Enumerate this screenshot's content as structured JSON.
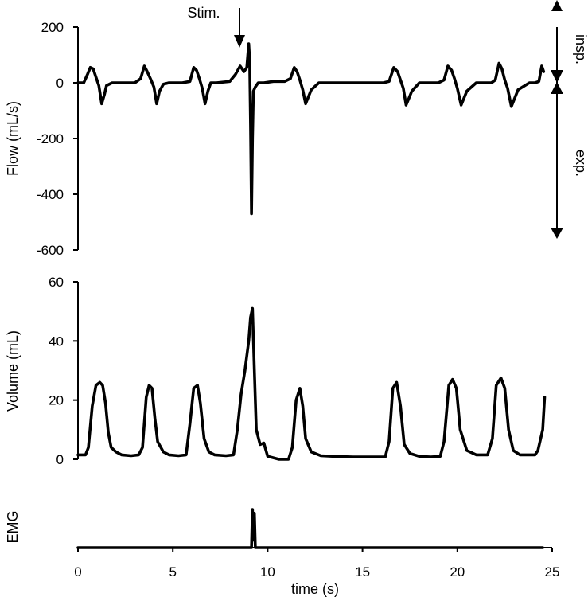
{
  "chart_data": [
    {
      "type": "line",
      "ylabel": "Flow (mL/s)",
      "xlim": [
        0,
        25
      ],
      "ylim": [
        -600,
        200
      ],
      "yticks": [
        "200",
        "0",
        "-200",
        "-400",
        "-600"
      ],
      "annotations": {
        "stimulus": "Stim.",
        "inspiration": "insp.",
        "expiration": "exp."
      },
      "series": [
        {
          "x": [
            0,
            0.3,
            0.5,
            0.65,
            0.8,
            0.95,
            1.1,
            1.25,
            1.4,
            1.5,
            1.8,
            2.5,
            3.0,
            3.3,
            3.5,
            3.65,
            3.85,
            4.0,
            4.15,
            4.3,
            4.5,
            4.8,
            5.5,
            5.9,
            6.1,
            6.25,
            6.4,
            6.55,
            6.7,
            6.85,
            7.0,
            7.3,
            8.0,
            8.3,
            8.55,
            8.75,
            8.9,
            9.0,
            9.05,
            9.1,
            9.15,
            9.2,
            9.25,
            9.35,
            9.5,
            9.8,
            10.3,
            10.9,
            11.2,
            11.4,
            11.55,
            11.7,
            11.85,
            12.0,
            12.3,
            12.7,
            13.5,
            14.5,
            15.5,
            16.1,
            16.4,
            16.65,
            16.85,
            17.0,
            17.15,
            17.3,
            17.6,
            18.0,
            18.6,
            19.0,
            19.3,
            19.5,
            19.7,
            19.85,
            20.0,
            20.2,
            20.5,
            21.0,
            21.5,
            21.8,
            22.0,
            22.2,
            22.35,
            22.5,
            22.65,
            22.85,
            23.2,
            23.8,
            24.1,
            24.3,
            24.45,
            24.55
          ],
          "y": [
            0,
            0,
            30,
            55,
            50,
            20,
            -10,
            -75,
            -40,
            -10,
            0,
            0,
            0,
            15,
            60,
            40,
            10,
            -15,
            -75,
            -30,
            -5,
            0,
            0,
            5,
            55,
            45,
            15,
            -20,
            -75,
            -30,
            0,
            0,
            5,
            30,
            60,
            40,
            55,
            140,
            80,
            -150,
            -470,
            -200,
            -30,
            -15,
            0,
            0,
            5,
            5,
            15,
            55,
            40,
            10,
            -25,
            -75,
            -25,
            0,
            0,
            0,
            0,
            0,
            5,
            55,
            40,
            10,
            -20,
            -80,
            -30,
            0,
            0,
            0,
            10,
            60,
            45,
            15,
            -20,
            -80,
            -30,
            0,
            0,
            0,
            10,
            70,
            50,
            10,
            -20,
            -85,
            -25,
            0,
            0,
            5,
            60,
            40
          ]
        }
      ]
    },
    {
      "type": "line",
      "ylabel": "Volume (mL)",
      "xlim": [
        0,
        25
      ],
      "ylim": [
        0,
        60
      ],
      "yticks": [
        "60",
        "40",
        "20",
        "0"
      ],
      "series": [
        {
          "x": [
            0,
            0.4,
            0.55,
            0.75,
            0.95,
            1.15,
            1.3,
            1.45,
            1.6,
            1.75,
            2.0,
            2.3,
            2.8,
            3.2,
            3.4,
            3.6,
            3.75,
            3.9,
            4.05,
            4.2,
            4.5,
            4.8,
            5.3,
            5.7,
            5.9,
            6.1,
            6.3,
            6.45,
            6.65,
            6.9,
            7.2,
            7.8,
            8.2,
            8.4,
            8.6,
            8.8,
            9.0,
            9.1,
            9.2,
            9.3,
            9.4,
            9.6,
            9.8,
            10.0,
            10.6,
            10.9,
            11.1,
            11.3,
            11.5,
            11.7,
            11.85,
            12.0,
            12.3,
            12.8,
            13.5,
            14.5,
            15.5,
            16.2,
            16.4,
            16.6,
            16.8,
            17.0,
            17.2,
            17.5,
            18.0,
            18.6,
            19.1,
            19.3,
            19.55,
            19.75,
            19.95,
            20.15,
            20.5,
            21.0,
            21.6,
            21.85,
            22.05,
            22.3,
            22.5,
            22.7,
            22.95,
            23.3,
            23.9,
            24.1,
            24.25,
            24.5,
            24.6
          ],
          "y": [
            1.5,
            1.5,
            4,
            18,
            25,
            26,
            25,
            19,
            9,
            4,
            2.5,
            1.5,
            1.2,
            1.5,
            4,
            21,
            25,
            24,
            14,
            6,
            2.5,
            1.5,
            1.2,
            1.5,
            12,
            24,
            25,
            19,
            7,
            2.5,
            1.5,
            1.2,
            1.5,
            10,
            22,
            30,
            40,
            48,
            51,
            30,
            10,
            5,
            5.5,
            1,
            0,
            0,
            0,
            4,
            20,
            24,
            18,
            7,
            2.5,
            1.2,
            1,
            0.8,
            0.8,
            0.8,
            6,
            24,
            26,
            18,
            5,
            2,
            1,
            0.8,
            1,
            6,
            25,
            27,
            24,
            10,
            3,
            1.5,
            1.5,
            7,
            25,
            27.5,
            24,
            10,
            3,
            1.5,
            1.5,
            1.5,
            3,
            10,
            21
          ]
        }
      ]
    },
    {
      "type": "line",
      "ylabel": "EMG",
      "xlabel": "time (s)",
      "xlim": [
        0,
        25
      ],
      "xticks": [
        "0",
        "5",
        "10",
        "15",
        "20",
        "25"
      ],
      "series": [
        {
          "x": [
            0,
            9.15,
            9.2,
            9.25,
            9.3,
            9.35,
            24.5
          ],
          "y": [
            0,
            0,
            1,
            0.2,
            0.9,
            0,
            0
          ]
        }
      ]
    }
  ]
}
